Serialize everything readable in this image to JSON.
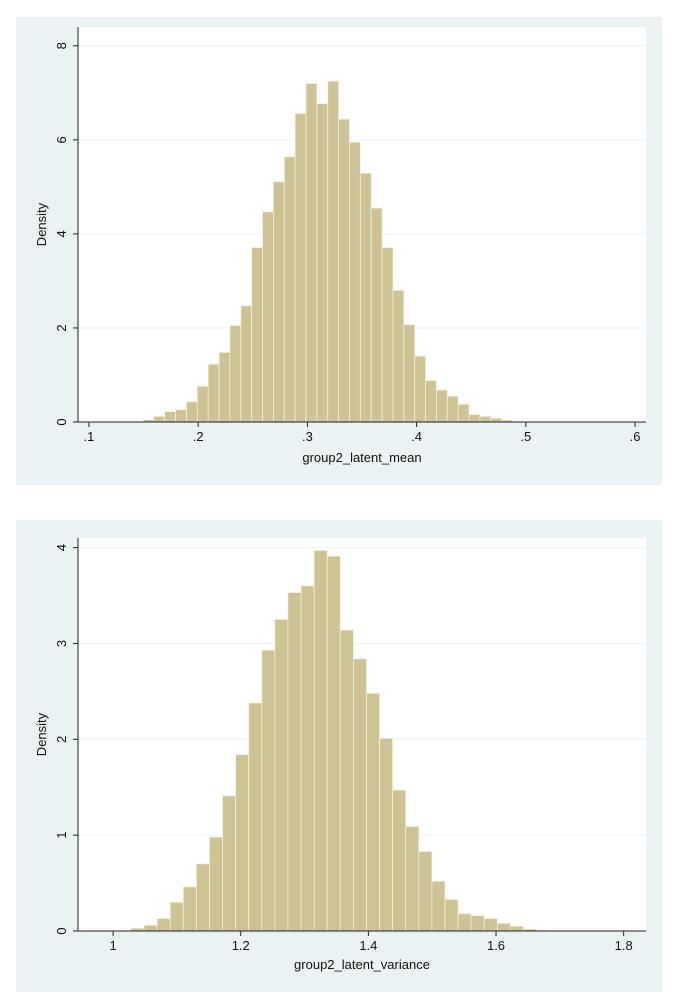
{
  "chart_data": [
    {
      "type": "bar",
      "xlabel": "group2_latent_mean",
      "ylabel": "Density",
      "bar_color": "#cdc394",
      "bar_edge_color": "#f4f0dc",
      "grid_color": "#eaf2f3",
      "plot_background": "#ffffff",
      "panel_background": "#eaf2f3",
      "xlim": [
        0.09,
        0.61
      ],
      "ylim": [
        0,
        8.4
      ],
      "xticks": [
        0.1,
        0.2,
        0.3,
        0.4,
        0.5,
        0.6
      ],
      "xtick_labels": [
        ".1",
        ".2",
        ".3",
        ".4",
        ".5",
        ".6"
      ],
      "yticks": [
        0,
        2,
        4,
        6,
        8
      ],
      "ytick_labels": [
        "0",
        "2",
        "4",
        "6",
        "8"
      ],
      "grid": true,
      "bin_width": 0.00995,
      "bin_start": 0.1495,
      "values": [
        0.05,
        0.12,
        0.22,
        0.26,
        0.43,
        0.76,
        1.23,
        1.48,
        2.05,
        2.47,
        3.71,
        4.47,
        5.11,
        5.64,
        6.56,
        7.2,
        6.77,
        7.25,
        6.44,
        5.95,
        5.29,
        4.55,
        3.71,
        2.8,
        2.07,
        1.4,
        0.88,
        0.68,
        0.55,
        0.38,
        0.16,
        0.12,
        0.08,
        0.04
      ]
    },
    {
      "type": "bar",
      "xlabel": "group2_latent_variance",
      "ylabel": "Density",
      "bar_color": "#cdc394",
      "bar_edge_color": "#f4f0dc",
      "grid_color": "#eaf2f3",
      "plot_background": "#ffffff",
      "panel_background": "#eaf2f3",
      "xlim": [
        0.945,
        1.835
      ],
      "ylim": [
        0,
        4.1
      ],
      "xticks": [
        1.0,
        1.2,
        1.4,
        1.6,
        1.8
      ],
      "xtick_labels": [
        "1",
        "1.2",
        "1.4",
        "1.6",
        "1.8"
      ],
      "yticks": [
        0,
        1,
        2,
        3,
        4
      ],
      "ytick_labels": [
        "0",
        "1",
        "2",
        "3",
        "4"
      ],
      "grid": true,
      "bin_width": 0.0205,
      "bin_start": 1.028,
      "values": [
        0.03,
        0.06,
        0.13,
        0.3,
        0.46,
        0.7,
        0.98,
        1.41,
        1.84,
        2.38,
        2.93,
        3.25,
        3.53,
        3.6,
        3.97,
        3.91,
        3.14,
        2.84,
        2.48,
        2.01,
        1.47,
        1.09,
        0.83,
        0.52,
        0.33,
        0.18,
        0.16,
        0.13,
        0.08,
        0.05,
        0.02,
        0.01
      ]
    }
  ]
}
